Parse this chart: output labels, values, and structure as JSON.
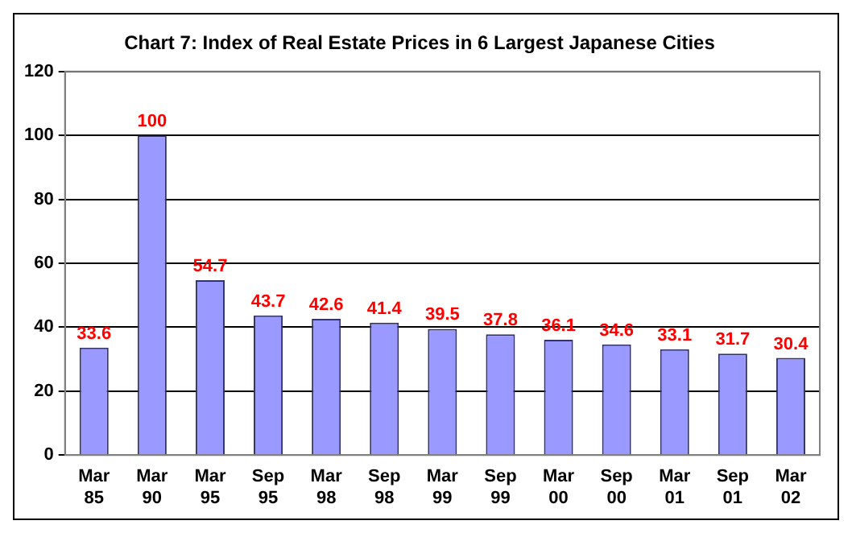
{
  "chart_data": {
    "type": "bar",
    "title": "Chart 7: Index of Real Estate Prices in 6 Largest Japanese Cities",
    "categories": [
      "Mar 85",
      "Mar 90",
      "Mar 95",
      "Sep 95",
      "Mar 98",
      "Sep 98",
      "Mar 99",
      "Sep 99",
      "Mar 00",
      "Sep 00",
      "Mar 01",
      "Sep 01",
      "Mar 02"
    ],
    "values": [
      33.6,
      100,
      54.7,
      43.7,
      42.6,
      41.4,
      39.5,
      37.8,
      36.1,
      34.6,
      33.1,
      31.7,
      30.4
    ],
    "color": "#9999ff",
    "ylim": [
      0,
      120
    ],
    "yticks": [
      0,
      20,
      40,
      60,
      80,
      100,
      120
    ],
    "grid": "y",
    "data_labels": true,
    "legend": false
  }
}
